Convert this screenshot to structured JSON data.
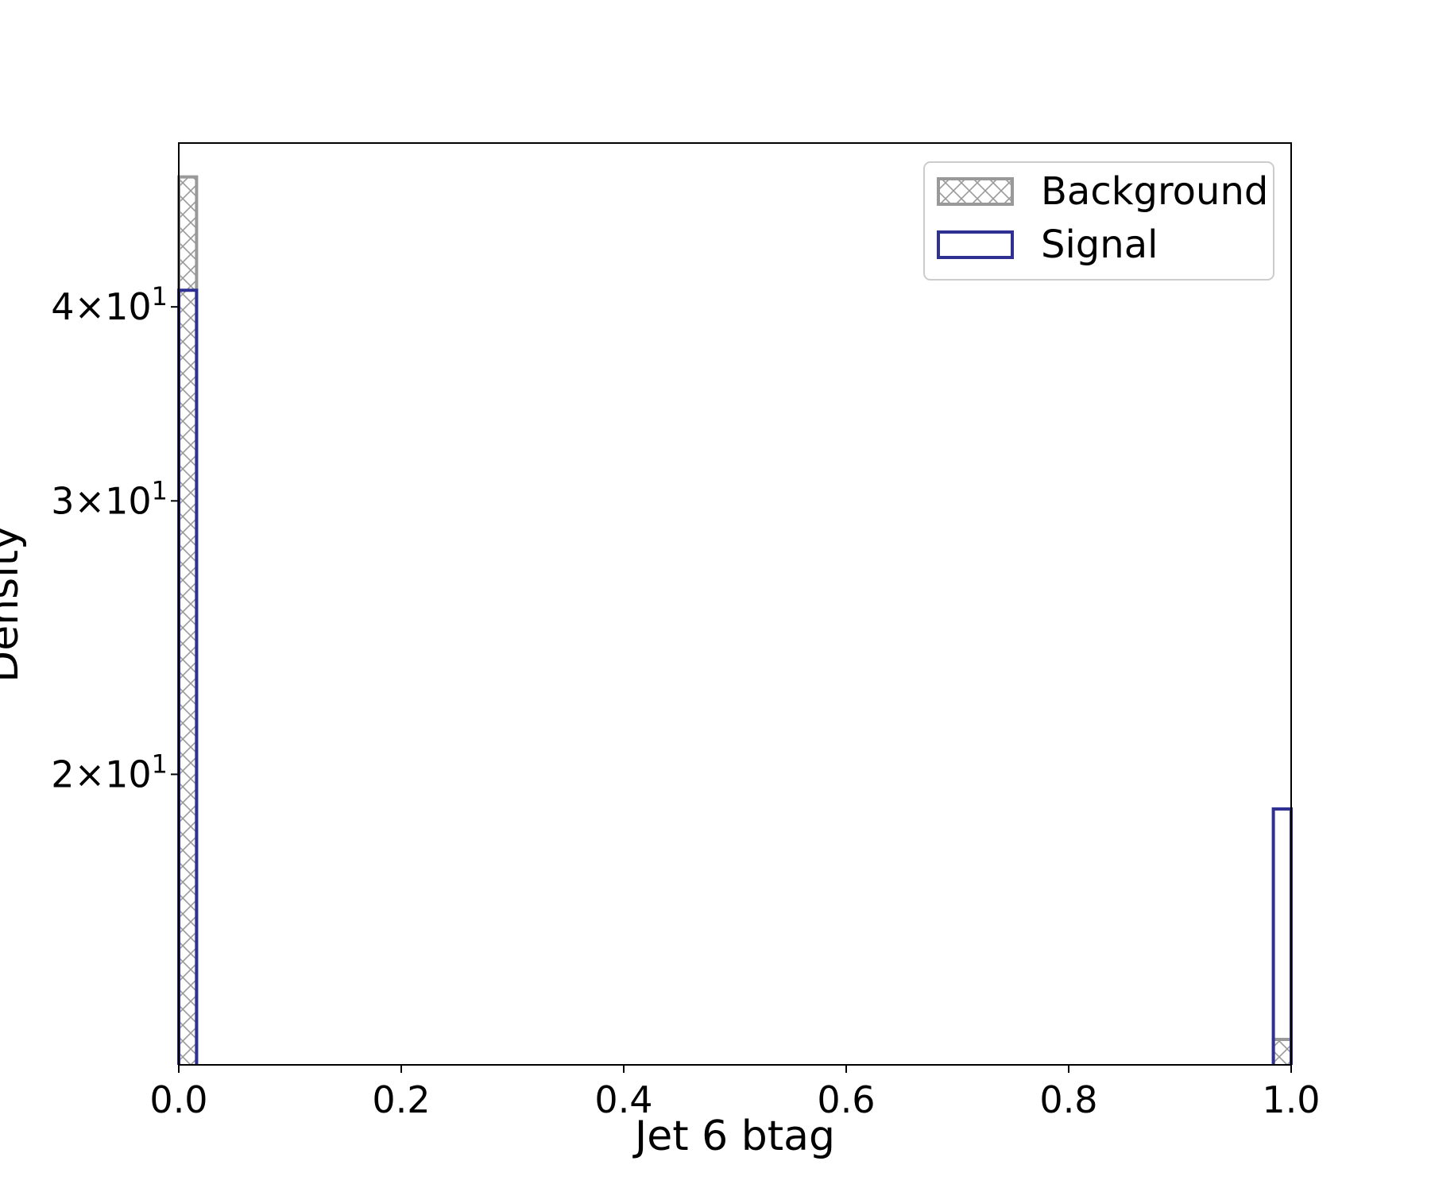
{
  "chart_data": {
    "type": "histogram",
    "xlabel": "Jet 6 btag",
    "ylabel": "Density",
    "xlim": [
      0.0,
      1.0
    ],
    "ylim": [
      13.0,
      51.0
    ],
    "yscale": "log",
    "grid": false,
    "legend_position": "top-right",
    "bin_width": 0.016,
    "x_ticks": [
      {
        "value": 0.0,
        "label": "0.0"
      },
      {
        "value": 0.2,
        "label": "0.2"
      },
      {
        "value": 0.4,
        "label": "0.4"
      },
      {
        "value": 0.6,
        "label": "0.6"
      },
      {
        "value": 0.8,
        "label": "0.8"
      },
      {
        "value": 1.0,
        "label": "1.0"
      }
    ],
    "y_ticks": [
      {
        "value": 20,
        "mantissa": "2",
        "base": "10",
        "exponent": "1"
      },
      {
        "value": 30,
        "mantissa": "3",
        "base": "10",
        "exponent": "1"
      },
      {
        "value": 40,
        "mantissa": "4",
        "base": "10",
        "exponent": "1"
      }
    ],
    "series": [
      {
        "name": "Background",
        "style": "hatched",
        "color": "#999999",
        "bins": [
          {
            "x0": 0.0,
            "x1": 0.016,
            "value": 48.5
          },
          {
            "x0": 0.984,
            "x1": 1.0,
            "value": 13.5
          }
        ]
      },
      {
        "name": "Signal",
        "style": "step",
        "color": "#2e3192",
        "bins": [
          {
            "x0": 0.0,
            "x1": 0.016,
            "value": 41.0
          },
          {
            "x0": 0.984,
            "x1": 1.0,
            "value": 19.0
          }
        ]
      }
    ]
  }
}
